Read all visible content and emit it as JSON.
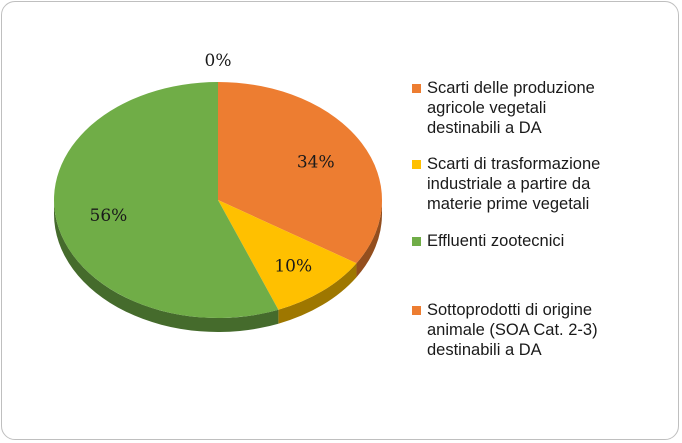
{
  "chart_data": {
    "type": "pie",
    "style": "3d",
    "slices": [
      {
        "label": "Scarti delle produzione agricole vegetali destinabili a DA",
        "value": 34,
        "display": "34%",
        "color": "#ED7D31"
      },
      {
        "label": "Scarti di trasformazione industriale a partire da materie prime vegetali",
        "value": 10,
        "display": "10%",
        "color": "#FFC000"
      },
      {
        "label": "Effluenti zootecnici",
        "value": 56,
        "display": "56%",
        "color": "#70AD47"
      },
      {
        "label": "Sottoprodotti di origine animale (SOA Cat. 2-3) destinabili a DA",
        "value": 0,
        "display": "0%",
        "color": "#ED7D31"
      }
    ],
    "legend": {
      "position": "right",
      "entries": [
        {
          "text": "Scarti delle produzione\nagricole vegetali\ndestinabili a DA",
          "color": "#ED7D31"
        },
        {
          "text": "Scarti di trasformazione\nindustriale a partire da\nmaterie prime vegetali",
          "color": "#FFC000"
        },
        {
          "text": "Effluenti zootecnici",
          "color": "#70AD47"
        },
        {
          "text": "Sottoprodotti di origine\nanimale (SOA Cat. 2-3)\ndestinabili a DA",
          "color": "#ED7D31"
        }
      ]
    }
  }
}
